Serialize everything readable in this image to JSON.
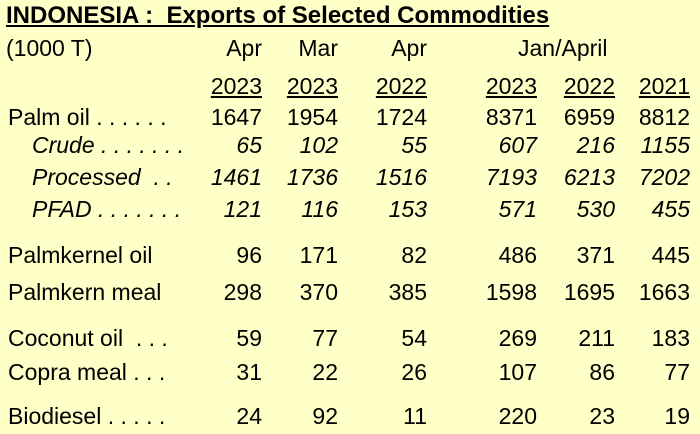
{
  "title": "INDONESIA :  Exports of Selected Commodities",
  "unit": "(1000 T)",
  "headers": {
    "months": [
      "Apr",
      "Mar",
      "Apr"
    ],
    "period": "Jan/April",
    "years": [
      "2023",
      "2023",
      "2022",
      "2023",
      "2022",
      "2021"
    ]
  },
  "rows": [
    {
      "label": "Palm oil . . . . . .",
      "values": [
        "1647",
        "1954",
        "1724",
        "8371",
        "6959",
        "8812"
      ],
      "italic": false,
      "sub": false
    },
    {
      "label": "Crude . . . . . . .",
      "values": [
        "65",
        "102",
        "55",
        "607",
        "216",
        "1155"
      ],
      "italic": true,
      "sub": true
    },
    {
      "label": "Processed  . .",
      "values": [
        "1461",
        "1736",
        "1516",
        "7193",
        "6213",
        "7202"
      ],
      "italic": true,
      "sub": true
    },
    {
      "label": "PFAD . . . . . . .",
      "values": [
        "121",
        "116",
        "153",
        "571",
        "530",
        "455"
      ],
      "italic": true,
      "sub": true
    },
    {
      "label": "Palmkernel oil",
      "values": [
        "96",
        "171",
        "82",
        "486",
        "371",
        "445"
      ],
      "italic": false,
      "sub": false
    },
    {
      "label": "Palmkern meal",
      "values": [
        "298",
        "370",
        "385",
        "1598",
        "1695",
        "1663"
      ],
      "italic": false,
      "sub": false
    },
    {
      "label": "Coconut oil  . . .",
      "values": [
        "59",
        "77",
        "54",
        "269",
        "211",
        "183"
      ],
      "italic": false,
      "sub": false
    },
    {
      "label": "Copra meal . . .",
      "values": [
        "31",
        "22",
        "26",
        "107",
        "86",
        "77"
      ],
      "italic": false,
      "sub": false
    },
    {
      "label": "Biodiesel . . . . .",
      "values": [
        "24",
        "92",
        "11",
        "220",
        "23",
        "19"
      ],
      "italic": false,
      "sub": false
    }
  ]
}
